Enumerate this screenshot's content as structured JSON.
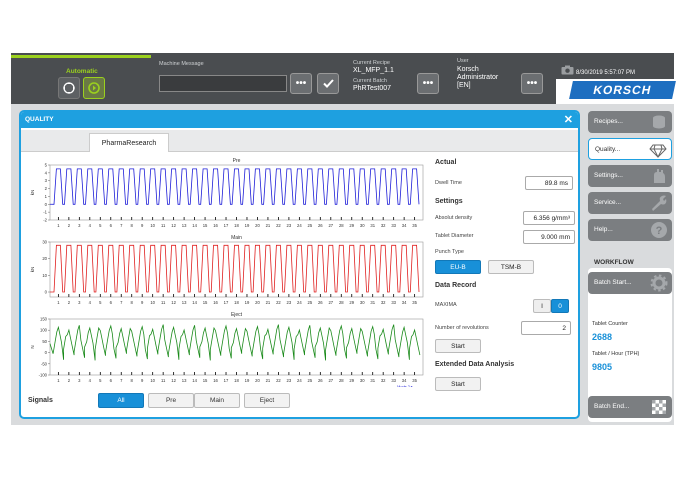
{
  "topbar": {
    "mode_label": "Automatic",
    "machine_message_label": "Machine Message",
    "machine_message_value": "",
    "current_recipe_label": "Current Recipe",
    "current_recipe_value": "XL_MFP_1.1",
    "current_batch_label": "Current Batch",
    "current_batch_value": "PhRTest007",
    "user_label": "User",
    "user_name": "Korsch",
    "user_role": "Administrator",
    "user_lang": "[EN]",
    "dots_label": "•••",
    "clock": "8/30/2019 5:57:07 PM",
    "logo": "KORSCH",
    "accent_green": "#9bd11e",
    "accent_blue": "#1ea0e0"
  },
  "dialog": {
    "title": "QUALITY",
    "close_label": "✕",
    "tab_label": "PharmaResearch"
  },
  "panel": {
    "actual_title": "Actual",
    "dwell_label": "Dwell Time",
    "dwell_value": "89.8 ms",
    "settings_title": "Settings",
    "density_label": "Absolut density",
    "density_value": "6.356 g/mm³",
    "diameter_label": "Tablet Diameter",
    "diameter_value": "9.000 mm",
    "punch_label": "Punch Type",
    "punch_options": [
      "EU-B",
      "TSM-B"
    ],
    "punch_selected": "EU-B",
    "record_title": "Data Record",
    "maxima_label": "MAXIMA",
    "toggle_off": "I",
    "toggle_on": "0",
    "revolutions_label": "Number of revolutions",
    "revolutions_value": "2",
    "start_label": "Start",
    "extended_title": "Extended Data Analysis",
    "start2_label": "Start"
  },
  "signals": {
    "label": "Signals",
    "buttons": [
      "All",
      "Pre",
      "Main",
      "Eject"
    ],
    "selected": "All"
  },
  "sidebar": {
    "items": [
      "Recipes...",
      "Quality...",
      "Settings...",
      "Service...",
      "Help..."
    ],
    "active": "Quality...",
    "workflow_title": "WORKFLOW",
    "batch_start": "Batch Start...",
    "tablet_counter_label": "Tablet Counter",
    "tablet_counter_value": "2688",
    "tablet_hour_label": "Tablet / Hour (TPH)",
    "tablet_hour_value": "9805",
    "batch_end": "Batch End..."
  },
  "chart_data": [
    {
      "type": "line",
      "title": "Pre",
      "ylabel": "kN",
      "ylim": [
        -2,
        5
      ],
      "yticks": [
        -2,
        -1,
        0,
        1,
        2,
        3,
        4,
        5
      ],
      "color": "#1f1fd8",
      "peaks": 35,
      "peak_value": 4.5,
      "base_value": 0,
      "xticks": [
        1,
        2,
        3,
        4,
        5,
        6,
        7,
        8,
        9,
        10,
        11,
        12,
        13,
        14,
        15,
        16,
        17,
        18,
        19,
        20,
        21,
        22,
        23,
        24,
        25,
        26,
        27,
        28,
        29,
        30,
        31,
        32,
        33,
        34,
        35
      ]
    },
    {
      "type": "line",
      "title": "Main",
      "ylabel": "kN",
      "ylim": [
        -3,
        30
      ],
      "yticks": [
        0,
        10,
        20,
        30
      ],
      "color": "#e02020",
      "peaks": 35,
      "peak_value": 28,
      "base_value": 0,
      "xticks": [
        1,
        2,
        3,
        4,
        5,
        6,
        7,
        8,
        9,
        10,
        11,
        12,
        13,
        14,
        15,
        16,
        17,
        18,
        19,
        20,
        21,
        22,
        23,
        24,
        25,
        26,
        27,
        28,
        29,
        30,
        31,
        32,
        33,
        34,
        35
      ]
    },
    {
      "type": "line",
      "title": "Eject",
      "ylabel": "N",
      "ylim": [
        -100,
        150
      ],
      "yticks": [
        -100,
        -50,
        0,
        50,
        100,
        150
      ],
      "color": "#1a8a1a",
      "peaks": 35,
      "peak_value": 110,
      "base_value": -20,
      "xticks": [
        1,
        2,
        3,
        4,
        5,
        6,
        7,
        8,
        9,
        10,
        11,
        12,
        13,
        14,
        15,
        16,
        17,
        18,
        19,
        20,
        21,
        22,
        23,
        24,
        25,
        26,
        27,
        28,
        29,
        30,
        31,
        32,
        33,
        34,
        35
      ],
      "footer_label": "Mode 2 ▸"
    }
  ]
}
